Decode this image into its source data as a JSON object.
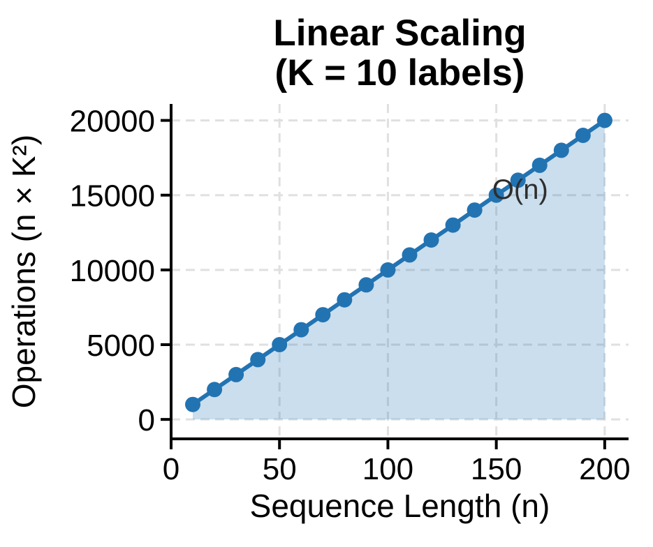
{
  "chart_data": {
    "type": "line",
    "title_lines": [
      "Linear Scaling",
      "(K = 10 labels)"
    ],
    "xlabel": "Sequence Length (n)",
    "ylabel": "Operations (n × K²)",
    "series": [
      {
        "name": "operations",
        "x": [
          10,
          20,
          30,
          40,
          50,
          60,
          70,
          80,
          90,
          100,
          110,
          120,
          130,
          140,
          150,
          160,
          170,
          180,
          190,
          200
        ],
        "y": [
          1000,
          2000,
          3000,
          4000,
          5000,
          6000,
          7000,
          8000,
          9000,
          10000,
          11000,
          12000,
          13000,
          14000,
          15000,
          16000,
          17000,
          18000,
          19000,
          20000
        ]
      }
    ],
    "xticks": [
      0,
      50,
      100,
      150,
      200
    ],
    "yticks": [
      0,
      5000,
      10000,
      15000,
      20000
    ],
    "xlim": [
      0,
      211
    ],
    "ylim": [
      -1300,
      21100
    ],
    "grid": true,
    "grid_style": "dashed",
    "area_fill": true,
    "fill_baseline": 0,
    "annotation": {
      "text": "O(n)",
      "x": 161,
      "y": 15400
    },
    "colors": {
      "line": "#2273b2",
      "fill": "rgba(34,115,178,0.24)",
      "grid": "#e0e0e0",
      "axis": "#000000",
      "text": "#000000",
      "annotation": "#2e2e2e"
    }
  }
}
